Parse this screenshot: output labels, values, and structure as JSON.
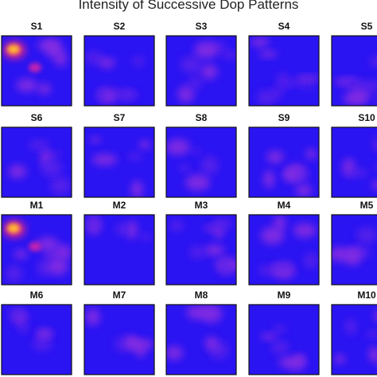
{
  "title": "Intensity of Successive Dop Patterns",
  "panels": [
    {
      "label": "S1"
    },
    {
      "label": "S2"
    },
    {
      "label": "S3"
    },
    {
      "label": "S4"
    },
    {
      "label": "S5"
    },
    {
      "label": "S6"
    },
    {
      "label": "S7"
    },
    {
      "label": "S8"
    },
    {
      "label": "S9"
    },
    {
      "label": "S10"
    },
    {
      "label": "M1"
    },
    {
      "label": "M2"
    },
    {
      "label": "M3"
    },
    {
      "label": "M4"
    },
    {
      "label": "M5"
    },
    {
      "label": "M6"
    },
    {
      "label": "M7"
    },
    {
      "label": "M8"
    },
    {
      "label": "M9"
    },
    {
      "label": "M10"
    }
  ]
}
